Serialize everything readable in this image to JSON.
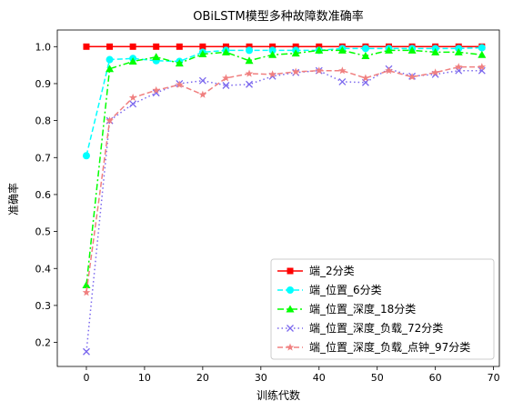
{
  "chart_data": {
    "type": "line",
    "title": "OBiLSTM模型多种故障数准确率",
    "xlabel": "训练代数",
    "ylabel": "准确率",
    "xlim": [
      -5,
      71
    ],
    "ylim": [
      0.135,
      1.045
    ],
    "xticks": [
      0,
      10,
      20,
      30,
      40,
      50,
      60,
      70
    ],
    "yticks": [
      0.2,
      0.3,
      0.4,
      0.5,
      0.6,
      0.7,
      0.8,
      0.9,
      1.0
    ],
    "xtick_labels": [
      "0",
      "10",
      "20",
      "30",
      "40",
      "50",
      "60",
      "70"
    ],
    "ytick_labels": [
      "0.2",
      "0.3",
      "0.4",
      "0.5",
      "0.6",
      "0.7",
      "0.8",
      "0.9",
      "1.0"
    ],
    "grid": false,
    "legend_position": "lower-right",
    "x": [
      0,
      4,
      8,
      12,
      16,
      20,
      24,
      28,
      32,
      36,
      40,
      44,
      48,
      52,
      56,
      60,
      64,
      68
    ],
    "series": [
      {
        "name": "端_2分类",
        "color": "#ff0000",
        "marker": "square",
        "dash": "solid",
        "values": [
          1.0,
          1.0,
          1.0,
          1.0,
          1.0,
          1.0,
          1.0,
          1.0,
          1.0,
          1.0,
          1.0,
          1.0,
          1.0,
          1.0,
          1.0,
          1.0,
          1.0,
          1.0
        ]
      },
      {
        "name": "端_位置_6分类",
        "color": "#00ffff",
        "marker": "circle",
        "dash": "dashed",
        "values": [
          0.705,
          0.965,
          0.968,
          0.962,
          0.96,
          0.985,
          0.99,
          0.99,
          0.99,
          0.99,
          0.99,
          0.995,
          0.995,
          0.995,
          0.995,
          0.995,
          0.995,
          0.997
        ]
      },
      {
        "name": "端_位置_深度_18分类",
        "color": "#00ff00",
        "marker": "triangle",
        "dash": "dashdot",
        "values": [
          0.355,
          0.94,
          0.96,
          0.972,
          0.955,
          0.98,
          0.985,
          0.962,
          0.978,
          0.982,
          0.99,
          0.99,
          0.975,
          0.99,
          0.99,
          0.985,
          0.985,
          0.978
        ]
      },
      {
        "name": "端_位置_深度_负载_72分类",
        "color": "#7b68ee",
        "marker": "x",
        "dash": "dotted",
        "values": [
          0.175,
          0.8,
          0.845,
          0.875,
          0.9,
          0.908,
          0.895,
          0.898,
          0.92,
          0.93,
          0.935,
          0.905,
          0.903,
          0.94,
          0.92,
          0.925,
          0.935,
          0.935
        ]
      },
      {
        "name": "端_位置_深度_负载_点钟_97分类",
        "color": "#f08080",
        "marker": "star",
        "dash": "dashed",
        "values": [
          0.335,
          0.8,
          0.862,
          0.882,
          0.897,
          0.87,
          0.915,
          0.927,
          0.925,
          0.932,
          0.935,
          0.935,
          0.915,
          0.935,
          0.918,
          0.93,
          0.945,
          0.945
        ]
      }
    ]
  }
}
